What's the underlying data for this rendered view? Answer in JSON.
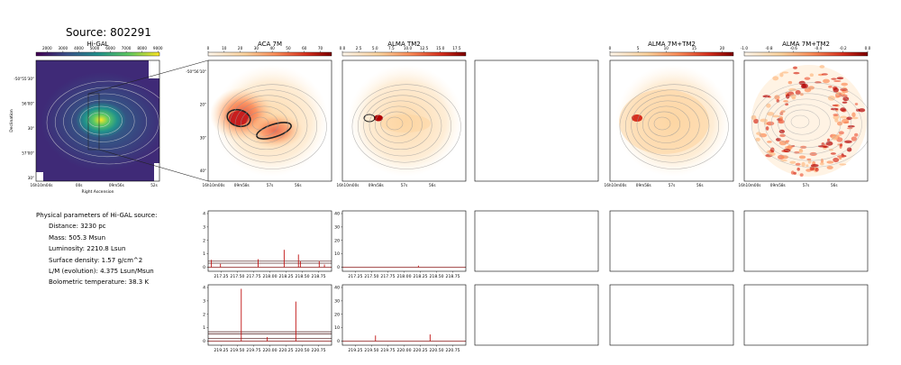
{
  "source_title": "Source: 802291",
  "params": {
    "heading": "Physical parameters of Hi-GAL source:",
    "items": [
      "Distance: 3230 pc",
      "Mass: 505.3 Msun",
      "Luminosity: 2210.8 Lsun",
      "Surface density: 1.57 g/cm^2",
      "L/M (evolution): 4.375 Lsun/Msun",
      "Bolometric temperature: 38.3 K"
    ]
  },
  "chart_data": [
    {
      "type": "heatmap",
      "title": "Hi-GAL",
      "xlabel": "Right Ascension",
      "ylabel": "Declination",
      "colormap": "viridis",
      "colorbar_ticks": [
        "2000",
        "3000",
        "4000",
        "5000",
        "6000",
        "7000",
        "8000",
        "9000"
      ],
      "colorbar_range": [
        1300,
        9100
      ],
      "xticks": [
        "16h10m04s",
        "00s",
        "09m56s",
        "52s"
      ],
      "yticks": [
        "-50°55'30\"",
        "56'00\"",
        "30\"",
        "57'00\"",
        "30\""
      ]
    },
    {
      "type": "heatmap",
      "title": "ACA 7M",
      "colormap": "orrd",
      "colorbar_ticks": [
        "0",
        "10",
        "20",
        "30",
        "40",
        "50",
        "60",
        "70"
      ],
      "colorbar_range": [
        0,
        77
      ],
      "xticks": [
        "16h10m00s",
        "09m58s",
        "57s",
        "56s"
      ],
      "yticks": [
        "-50°56'10\"",
        "20\"",
        "30\"",
        "40\""
      ]
    },
    {
      "type": "heatmap",
      "title": "ALMA TM2",
      "colormap": "orrd",
      "colorbar_ticks": [
        "0.0",
        "2.5",
        "5.0",
        "7.5",
        "10.0",
        "12.5",
        "15.0",
        "17.5"
      ],
      "colorbar_range": [
        0,
        18.9
      ],
      "xticks": [
        "16h10m00s",
        "09m58s",
        "57s",
        "56s"
      ]
    },
    {
      "type": "heatmap",
      "title": ""
    },
    {
      "type": "heatmap",
      "title": "ALMA 7M+TM2",
      "colormap": "orrd",
      "colorbar_ticks": [
        "0",
        "5",
        "10",
        "15",
        "20"
      ],
      "colorbar_range": [
        0,
        22
      ],
      "xticks": [
        "16h10m00s",
        "09m58s",
        "57s",
        "56s"
      ]
    },
    {
      "type": "heatmap",
      "title": "ALMA 7M+TM2",
      "colormap": "orrd",
      "colorbar_ticks": [
        "-1.0",
        "-0.8",
        "-0.6",
        "-0.4",
        "-0.2",
        "0.0"
      ],
      "colorbar_range": [
        -1.0,
        0.0
      ],
      "xticks": [
        "16h10m00s",
        "09m58s",
        "57s",
        "56s"
      ]
    },
    {
      "type": "line",
      "title": "",
      "xticks": [
        "217.25",
        "217.50",
        "217.75",
        "218.00",
        "218.25",
        "218.50",
        "218.75"
      ],
      "x_range": [
        217.05,
        218.95
      ],
      "yticks": [
        "0",
        "1",
        "2",
        "3",
        "4"
      ],
      "ylim": [
        -0.3,
        4.2
      ],
      "spikes": [
        {
          "x": 217.1,
          "y": 0.55
        },
        {
          "x": 217.24,
          "y": 0.25
        },
        {
          "x": 217.82,
          "y": 0.6
        },
        {
          "x": 218.22,
          "y": 1.3
        },
        {
          "x": 218.44,
          "y": 0.95
        },
        {
          "x": 218.47,
          "y": 0.45
        },
        {
          "x": 218.76,
          "y": 0.45
        },
        {
          "x": 218.84,
          "y": 0.2
        }
      ],
      "levels": [
        0.0,
        0.3,
        0.45
      ]
    },
    {
      "type": "line",
      "title": "",
      "xticks": [
        "217.25",
        "217.50",
        "217.75",
        "218.00",
        "218.25",
        "218.50",
        "218.75"
      ],
      "x_range": [
        217.05,
        218.95
      ],
      "yticks": [
        "0",
        "10",
        "20",
        "30",
        "40"
      ],
      "ylim": [
        -3,
        42
      ],
      "spikes": [
        {
          "x": 218.22,
          "y": 1.2
        }
      ],
      "levels": [
        0.0
      ]
    },
    {
      "type": "line",
      "title": ""
    },
    {
      "type": "line",
      "title": ""
    },
    {
      "type": "line",
      "title": ""
    },
    {
      "type": "line",
      "title": "",
      "xticks": [
        "219.25",
        "219.50",
        "219.75",
        "220.00",
        "220.25",
        "220.50",
        "220.75"
      ],
      "x_range": [
        219.05,
        220.95
      ],
      "yticks": [
        "0",
        "1",
        "2",
        "3",
        "4"
      ],
      "ylim": [
        -0.3,
        4.2
      ],
      "spikes": [
        {
          "x": 219.56,
          "y": 3.9
        },
        {
          "x": 219.96,
          "y": 0.3
        },
        {
          "x": 220.4,
          "y": 2.95
        }
      ],
      "levels": [
        0.0,
        0.2,
        0.55,
        0.7
      ]
    },
    {
      "type": "line",
      "title": "",
      "xticks": [
        "219.25",
        "219.50",
        "219.75",
        "220.00",
        "220.25",
        "220.50",
        "220.75"
      ],
      "x_range": [
        219.05,
        220.95
      ],
      "yticks": [
        "0",
        "10",
        "20",
        "30",
        "40"
      ],
      "ylim": [
        -3,
        42
      ],
      "spikes": [
        {
          "x": 219.56,
          "y": 4.2
        },
        {
          "x": 220.4,
          "y": 5.0
        }
      ],
      "levels": [
        0.0
      ]
    },
    {
      "type": "line",
      "title": ""
    },
    {
      "type": "line",
      "title": ""
    },
    {
      "type": "line",
      "title": ""
    }
  ]
}
